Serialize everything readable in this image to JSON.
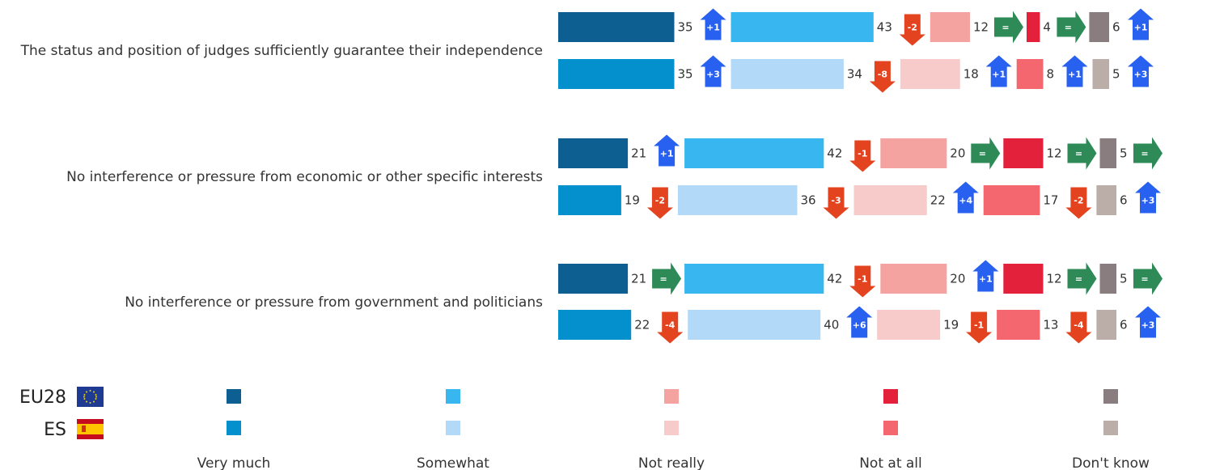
{
  "chart_data": {
    "type": "bar",
    "orientation": "horizontal",
    "stacked": true,
    "categories": [
      "The status and position of judges sufficiently guarantee their independence",
      "No interference or pressure from economic or other specific interests",
      "No interference or pressure from government and politicians"
    ],
    "response_labels": [
      "Very much",
      "Somewhat",
      "Not really",
      "Not at all",
      "Don't know"
    ],
    "groups": [
      {
        "name": "EU28",
        "colors": [
          "#0d5f91",
          "#37b6ef",
          "#f5a3a0",
          "#e4213b",
          "#8a7d80"
        ],
        "values": [
          [
            35,
            43,
            12,
            4,
            6
          ],
          [
            21,
            42,
            20,
            12,
            5
          ],
          [
            21,
            42,
            20,
            12,
            5
          ]
        ],
        "changes": [
          [
            "+1",
            "-2",
            "=",
            "=",
            "+1"
          ],
          [
            "+1",
            "-1",
            "=",
            "=",
            "="
          ],
          [
            "=",
            "-1",
            "+1",
            "=",
            "="
          ]
        ]
      },
      {
        "name": "ES",
        "colors": [
          "#0390cc",
          "#b2d9f7",
          "#f6cbc9",
          "#f4676f",
          "#bbaea8"
        ],
        "values": [
          [
            35,
            34,
            18,
            8,
            5
          ],
          [
            19,
            36,
            22,
            17,
            6
          ],
          [
            22,
            40,
            19,
            13,
            6
          ]
        ],
        "changes": [
          [
            "+3",
            "-8",
            "+1",
            "+1",
            "+3"
          ],
          [
            "-2",
            "-3",
            "+4",
            "-2",
            "+3"
          ],
          [
            "-4",
            "+6",
            "-1",
            "-4",
            "+3"
          ]
        ]
      }
    ],
    "change_colors": {
      "up": "#2860f0",
      "down": "#e4431f",
      "same": "#2e8b57"
    }
  }
}
